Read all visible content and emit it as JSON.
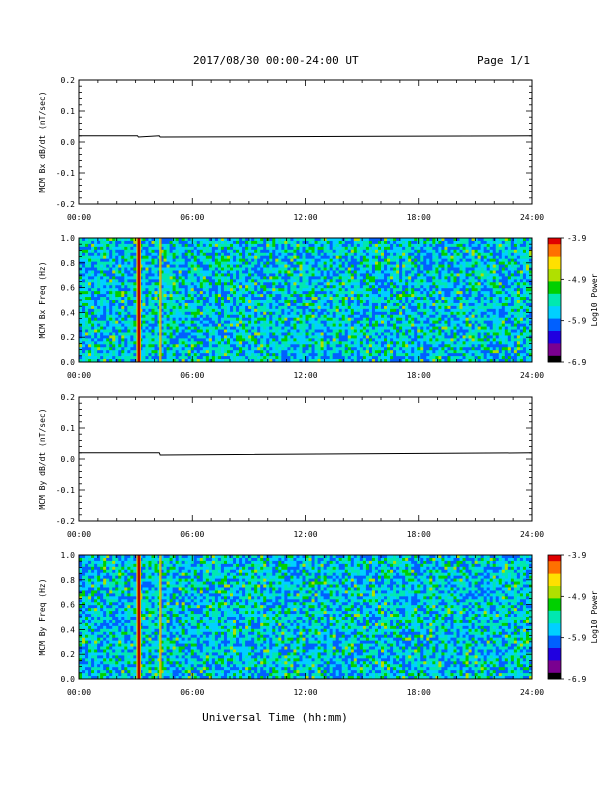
{
  "header": {
    "title": "2017/08/30  00:00-24:00 UT",
    "page": "Page 1/1"
  },
  "colors": {
    "trace": "#000000",
    "colormap": [
      "#000000",
      "#7a0090",
      "#2000e0",
      "#0060ff",
      "#00d0ff",
      "#00e8b0",
      "#00d000",
      "#b0e000",
      "#ffe000",
      "#ff7000",
      "#e00000"
    ]
  },
  "xlabel": "Universal Time (hh:mm)",
  "chart_data": [
    {
      "type": "line",
      "ylabel": "MCM Bx dB/dt (nT/sec)",
      "xlim": [
        0,
        24
      ],
      "ylim": [
        -0.2,
        0.2
      ],
      "xticks": [
        "00:00",
        "06:00",
        "12:00",
        "18:00",
        "24:00"
      ],
      "yticks": [
        "-0.2",
        "-0.1",
        "0.0",
        "0.1",
        "0.2"
      ],
      "series": [
        {
          "x": [
            0,
            3.1,
            3.15,
            4.25,
            4.3,
            24
          ],
          "y": [
            0.02,
            0.02,
            0.016,
            0.02,
            0.016,
            0.02
          ]
        }
      ]
    },
    {
      "type": "heatmap",
      "ylabel": "MCM Bx Freq (Hz)",
      "xlim": [
        0,
        24
      ],
      "ylim": [
        0,
        1
      ],
      "xticks": [
        "00:00",
        "06:00",
        "12:00",
        "18:00",
        "24:00"
      ],
      "yticks": [
        "0.0",
        "0.2",
        "0.4",
        "0.6",
        "0.8",
        "1.0"
      ],
      "colorbar": {
        "label": "Log10 Power",
        "ticks": [
          "-3.9",
          "-4.9",
          "-5.9",
          "-6.9"
        ],
        "range": [
          -6.9,
          -3.9
        ]
      },
      "features": [
        {
          "time": 3.1,
          "description": "spike"
        },
        {
          "time": 4.25,
          "description": "spike"
        }
      ]
    },
    {
      "type": "line",
      "ylabel": "MCM By dB/dt (nT/sec)",
      "xlim": [
        0,
        24
      ],
      "ylim": [
        -0.2,
        0.2
      ],
      "xticks": [
        "00:00",
        "06:00",
        "12:00",
        "18:00",
        "24:00"
      ],
      "yticks": [
        "-0.2",
        "-0.1",
        "0.0",
        "0.1",
        "0.2"
      ],
      "series": [
        {
          "x": [
            0,
            4.25,
            4.3,
            24
          ],
          "y": [
            0.02,
            0.02,
            0.013,
            0.02
          ]
        }
      ]
    },
    {
      "type": "heatmap",
      "ylabel": "MCM By Freq (Hz)",
      "xlim": [
        0,
        24
      ],
      "ylim": [
        0,
        1
      ],
      "xticks": [
        "00:00",
        "06:00",
        "12:00",
        "18:00",
        "24:00"
      ],
      "yticks": [
        "0.0",
        "0.2",
        "0.4",
        "0.6",
        "0.8",
        "1.0"
      ],
      "colorbar": {
        "label": "Log10 Power",
        "ticks": [
          "-3.9",
          "-4.9",
          "-5.9",
          "-6.9"
        ],
        "range": [
          -6.9,
          -3.9
        ]
      },
      "features": [
        {
          "time": 3.1,
          "description": "spike"
        },
        {
          "time": 4.25,
          "description": "spike"
        }
      ]
    }
  ]
}
